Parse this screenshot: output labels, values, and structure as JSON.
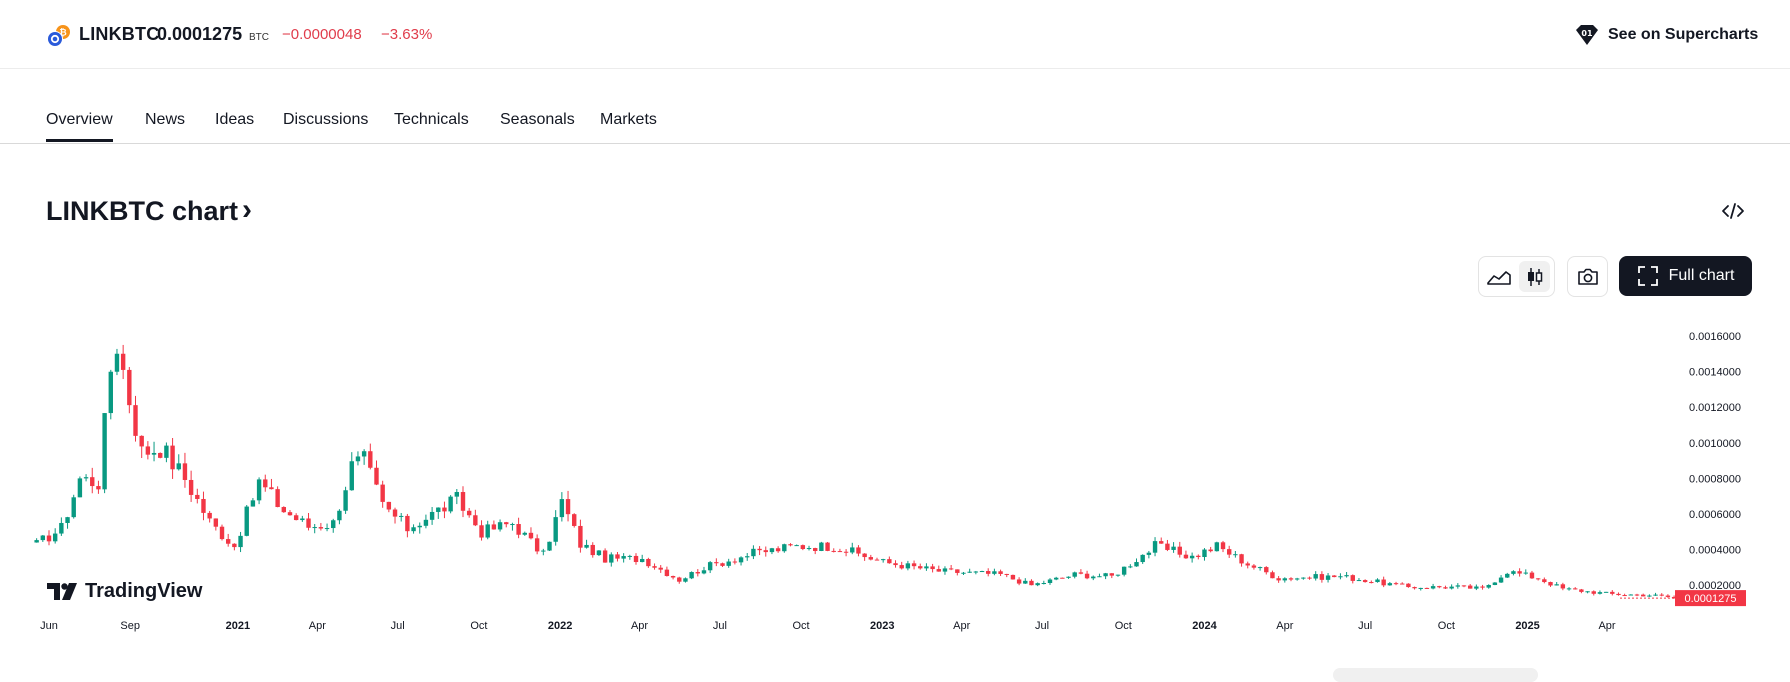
{
  "header": {
    "symbol": "LINKBTC",
    "price": "0.0001275",
    "currency": "BTC",
    "change": "−0.0000048",
    "change_percent": "−3.63%",
    "supercharts_label": "See on Supercharts",
    "negative_color": "#e03c4b"
  },
  "tabs": [
    {
      "label": "Overview",
      "active": true
    },
    {
      "label": "News"
    },
    {
      "label": "Ideas"
    },
    {
      "label": "Discussions"
    },
    {
      "label": "Technicals"
    },
    {
      "label": "Seasonals"
    },
    {
      "label": "Markets"
    }
  ],
  "chart_section": {
    "title": "LINKBTC chart",
    "title_chevron": "›",
    "full_chart_label": "Full chart",
    "watermark": "TradingView"
  },
  "icons": {
    "symbol_logo": "chainlink-bitcoin-icon",
    "supercharts": "supercharts-icon",
    "embed": "code-embed-icon",
    "area_chart": "area-chart-icon",
    "candles": "candlestick-icon",
    "snapshot": "camera-icon",
    "fullscreen": "fullscreen-icon"
  },
  "chart_data": {
    "type": "candlestick",
    "interval": "weekly",
    "up_color": "#089981",
    "down_color": "#f23645",
    "last_price_label": "0.0001275",
    "y_tick_labels": [
      "0.0002000",
      "0.0004000",
      "0.0006000",
      "0.0008000",
      "0.0010000",
      "0.0012000",
      "0.0014000",
      "0.0016000"
    ],
    "ylim": [
      8e-05,
      0.00173
    ],
    "x_tick_labels": [
      {
        "label": "Jun",
        "date": "2020-06-01",
        "bold": false
      },
      {
        "label": "Sep",
        "date": "2020-09-01",
        "bold": false
      },
      {
        "label": "2021",
        "date": "2021-01-01",
        "bold": true
      },
      {
        "label": "Apr",
        "date": "2021-04-01",
        "bold": false
      },
      {
        "label": "Jul",
        "date": "2021-07-01",
        "bold": false
      },
      {
        "label": "Oct",
        "date": "2021-10-01",
        "bold": false
      },
      {
        "label": "2022",
        "date": "2022-01-01",
        "bold": true
      },
      {
        "label": "Apr",
        "date": "2022-04-01",
        "bold": false
      },
      {
        "label": "Jul",
        "date": "2022-07-01",
        "bold": false
      },
      {
        "label": "Oct",
        "date": "2022-10-01",
        "bold": false
      },
      {
        "label": "2023",
        "date": "2023-01-01",
        "bold": true
      },
      {
        "label": "Apr",
        "date": "2023-04-01",
        "bold": false
      },
      {
        "label": "Jul",
        "date": "2023-07-01",
        "bold": false
      },
      {
        "label": "Oct",
        "date": "2023-10-01",
        "bold": false
      },
      {
        "label": "2024",
        "date": "2024-01-01",
        "bold": true
      },
      {
        "label": "Apr",
        "date": "2024-04-01",
        "bold": false
      },
      {
        "label": "Jul",
        "date": "2024-07-01",
        "bold": false
      },
      {
        "label": "Oct",
        "date": "2024-10-01",
        "bold": false
      },
      {
        "label": "2025",
        "date": "2025-01-01",
        "bold": true
      },
      {
        "label": "Apr",
        "date": "2025-04-01",
        "bold": false
      }
    ],
    "date_range": [
      "2020-05-18",
      "2025-06-23"
    ],
    "anchors": [
      [
        "2020-05-18",
        0.00043
      ],
      [
        "2020-06-15",
        0.00052
      ],
      [
        "2020-07-06",
        0.0008
      ],
      [
        "2020-07-27",
        0.00078
      ],
      [
        "2020-08-10",
        0.00142
      ],
      [
        "2020-08-17",
        0.00157
      ],
      [
        "2020-08-31",
        0.00125
      ],
      [
        "2020-09-14",
        0.00095
      ],
      [
        "2020-10-05",
        0.00098
      ],
      [
        "2020-11-02",
        0.0008
      ],
      [
        "2020-12-01",
        0.00055
      ],
      [
        "2020-12-28",
        0.00042
      ],
      [
        "2021-01-25",
        0.00078
      ],
      [
        "2021-02-22",
        0.00062
      ],
      [
        "2021-03-22",
        0.00053
      ],
      [
        "2021-04-19",
        0.00055
      ],
      [
        "2021-05-10",
        0.00087
      ],
      [
        "2021-05-24",
        0.0009
      ],
      [
        "2021-06-14",
        0.00065
      ],
      [
        "2021-07-12",
        0.00052
      ],
      [
        "2021-08-16",
        0.00062
      ],
      [
        "2021-09-06",
        0.00068
      ],
      [
        "2021-10-04",
        0.0005
      ],
      [
        "2021-11-08",
        0.00055
      ],
      [
        "2021-12-13",
        0.00037
      ],
      [
        "2022-01-03",
        0.00067
      ],
      [
        "2022-01-24",
        0.00043
      ],
      [
        "2022-02-21",
        0.00035
      ],
      [
        "2022-04-04",
        0.00035
      ],
      [
        "2022-05-16",
        0.00023
      ],
      [
        "2022-06-13",
        0.0003
      ],
      [
        "2022-08-08",
        0.00038
      ],
      [
        "2022-09-26",
        0.00042
      ],
      [
        "2022-11-07",
        0.00042
      ],
      [
        "2023-01-02",
        0.00033
      ],
      [
        "2023-03-06",
        0.00028
      ],
      [
        "2023-05-15",
        0.00026
      ],
      [
        "2023-06-19",
        0.0002
      ],
      [
        "2023-08-07",
        0.00026
      ],
      [
        "2023-09-18",
        0.00025
      ],
      [
        "2023-11-06",
        0.00042
      ],
      [
        "2023-12-18",
        0.00036
      ],
      [
        "2024-01-15",
        0.00042
      ],
      [
        "2024-02-19",
        0.00032
      ],
      [
        "2024-03-25",
        0.00024
      ],
      [
        "2024-06-03",
        0.00025
      ],
      [
        "2024-08-19",
        0.00019
      ],
      [
        "2024-10-14",
        0.00019
      ],
      [
        "2024-11-11",
        0.00018
      ],
      [
        "2024-12-09",
        0.00028
      ],
      [
        "2025-01-13",
        0.00024
      ],
      [
        "2025-02-10",
        0.00018
      ],
      [
        "2025-04-07",
        0.00015
      ],
      [
        "2025-05-19",
        0.000145
      ],
      [
        "2025-06-23",
        0.0001275
      ]
    ]
  }
}
